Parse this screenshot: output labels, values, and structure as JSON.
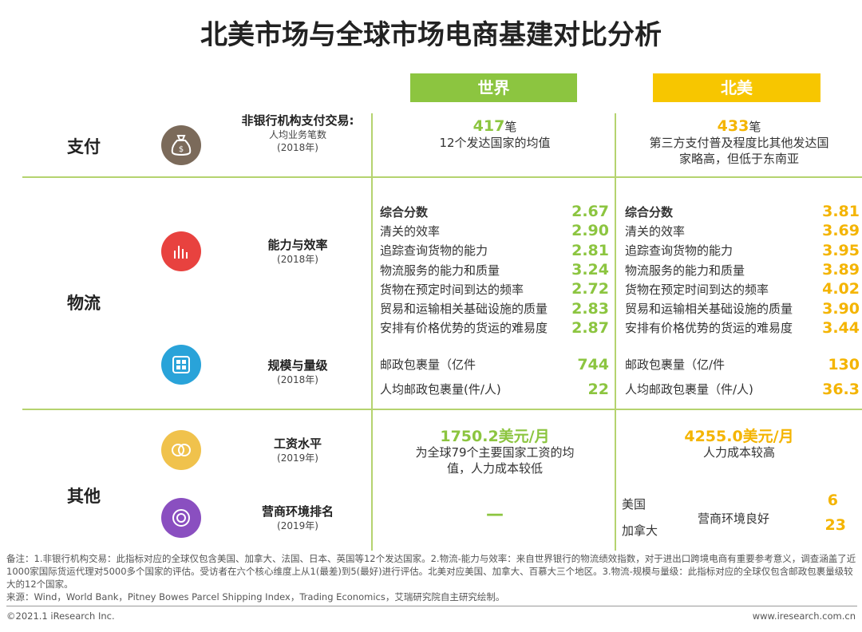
{
  "title": "北美市场与全球市场电商基建对比分析",
  "columns": {
    "world": "世界",
    "north_america": "北美"
  },
  "colors": {
    "world": "#8cc540",
    "north_america": "#f4b400",
    "line": "#b5d36f"
  },
  "payment": {
    "category": "支付",
    "icon": "money-bag-icon",
    "label": "非银行机构支付交易:",
    "sublabel": "人均业务笔数",
    "year": "(2018年)",
    "world": {
      "value": "417",
      "unit": "笔",
      "note": "12个发达国家的均值"
    },
    "na": {
      "value": "433",
      "unit": "笔",
      "note": "第三方支付普及程度比其他发达国家略高，但低于东南亚"
    }
  },
  "logistics": {
    "category": "物流",
    "efficiency": {
      "icon": "bar-chart-icon",
      "label": "能力与效率",
      "year": "(2018年)",
      "world": [
        {
          "label": "综合分数",
          "value": "2.67"
        },
        {
          "label": "清关的效率",
          "value": "2.90"
        },
        {
          "label": "追踪查询货物的能力",
          "value": "2.81"
        },
        {
          "label": "物流服务的能力和质量",
          "value": "3.24"
        },
        {
          "label": "货物在预定时间到达的频率",
          "value": "2.72"
        },
        {
          "label": "贸易和运输相关基础设施的质量",
          "value": "2.83"
        },
        {
          "label": "安排有价格优势的货运的难易度",
          "value": "2.87"
        }
      ],
      "na": [
        {
          "label": "综合分数",
          "value": "3.81"
        },
        {
          "label": "清关的效率",
          "value": "3.69"
        },
        {
          "label": "追踪查询货物的能力",
          "value": "3.95"
        },
        {
          "label": "物流服务的能力和质量",
          "value": "3.89"
        },
        {
          "label": "货物在预定时间到达的频率",
          "value": "4.02"
        },
        {
          "label": "贸易和运输相关基础设施的质量",
          "value": "3.90"
        },
        {
          "label": "安排有价格优势的货运的难易度",
          "value": "3.44"
        }
      ]
    },
    "scale": {
      "icon": "grid-icon",
      "label": "规模与量级",
      "year": "(2018年)",
      "world": [
        {
          "label": "邮政包裹量（亿件",
          "value": "744"
        },
        {
          "label": "人均邮政包裹量(件/人)",
          "value": "22"
        }
      ],
      "na": [
        {
          "label": "邮政包裹量（亿/件",
          "value": "130"
        },
        {
          "label": "人均邮政包裹量（件/人)",
          "value": "36.3"
        }
      ]
    }
  },
  "other": {
    "category": "其他",
    "wage": {
      "icon": "rings-icon",
      "label": "工资水平",
      "year": "(2019年)",
      "world": {
        "value": "1750.2美元/月",
        "note": "为全球79个主要国家工资的均值，人力成本较低"
      },
      "na": {
        "value": "4255.0美元/月",
        "note": "人力成本较高"
      }
    },
    "business": {
      "icon": "target-icon",
      "label": "营商环境排名",
      "year": "(2019年)",
      "world": {
        "value": "—"
      },
      "na": {
        "countries": [
          {
            "name": "美国",
            "rank": "6"
          },
          {
            "name": "加拿大",
            "rank": "23"
          }
        ],
        "note": "营商环境良好"
      }
    }
  },
  "notes": "备注：1.非银行机构交易：此指标对应的全球仅包含美国、加拿大、法国、日本、英国等12个发达国家。2.物流-能力与效率：来自世界银行的物流绩效指数，对于进出口跨境电商有重要参考意义，调查涵盖了近1000家国际货运代理对5000多个国家的评估。受访者在六个核心维度上从1(最差)到5(最好)进行评估。北美对应美国、加拿大、百慕大三个地区。3.物流-规模与量级：此指标对应的全球仅包含邮政包裹量级较大的12个国家。",
  "source": "来源：Wind，World Bank，Pitney Bowes Parcel Shipping Index，Trading Economics，艾瑞研究院自主研究绘制。",
  "copyright": "©2021.1 iResearch Inc.",
  "website": "www.iresearch.com.cn"
}
